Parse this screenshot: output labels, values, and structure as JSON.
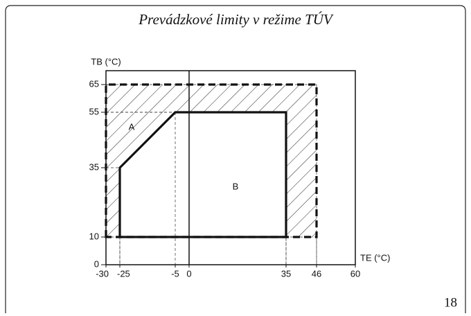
{
  "chart_data": {
    "type": "region",
    "title": "Prevádzkové limity v režime TÚV",
    "y_label": "TB (°C)",
    "x_label": "TE (°C)",
    "xlim": [
      -30,
      60
    ],
    "ylim": [
      0,
      70
    ],
    "xticks": [
      -30,
      -25,
      -5,
      0,
      35,
      46,
      60
    ],
    "yticks": [
      0,
      10,
      35,
      55,
      65
    ],
    "series": [
      {
        "name": "A",
        "x": [
          -30,
          -30,
          46,
          46
        ],
        "y": [
          10,
          65,
          65,
          10
        ],
        "hatched": true,
        "dashed": true
      },
      {
        "name": "B",
        "x": [
          -25,
          -25,
          -5,
          35,
          35
        ],
        "y": [
          10,
          35,
          55,
          55,
          10
        ],
        "hatched": false,
        "dashed": false
      }
    ]
  },
  "page_number": "18"
}
